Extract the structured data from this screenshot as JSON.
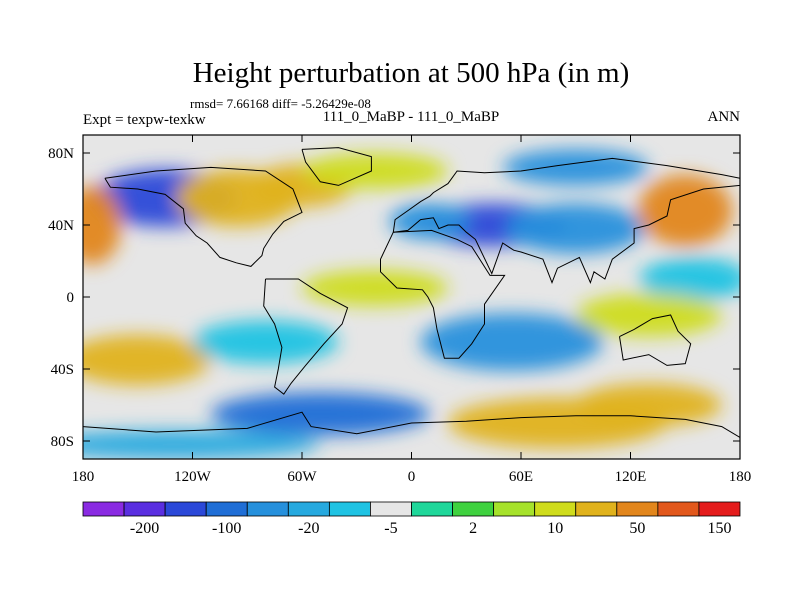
{
  "chart_data": {
    "type": "heatmap",
    "title": "Height perturbation at 500 hPa (in m)",
    "stats_text": "rmsd= 7.66168 diff= -5.26429e-08",
    "subtitle_left": "Expt = texpw-texkw",
    "subtitle_center": "111_0_MaBP - 111_0_MaBP",
    "subtitle_right": "ANN",
    "xlim": [
      -180,
      180
    ],
    "ylim": [
      -90,
      90
    ],
    "x_ticks": [
      {
        "value": -180,
        "label": "180"
      },
      {
        "value": -120,
        "label": "120W"
      },
      {
        "value": -60,
        "label": "60W"
      },
      {
        "value": 0,
        "label": "0"
      },
      {
        "value": 60,
        "label": "60E"
      },
      {
        "value": 120,
        "label": "120E"
      },
      {
        "value": 180,
        "label": "180"
      }
    ],
    "y_ticks": [
      {
        "value": 80,
        "label": "80N"
      },
      {
        "value": 40,
        "label": "40N"
      },
      {
        "value": 0,
        "label": "0"
      },
      {
        "value": -40,
        "label": "40S"
      },
      {
        "value": -80,
        "label": "80S"
      }
    ],
    "colorbar": {
      "colors": [
        "#8a2be2",
        "#5a2ee0",
        "#2b48d8",
        "#1f6ed6",
        "#2690dc",
        "#26a9df",
        "#1fc3e3",
        "#e6e6e6",
        "#1fd79a",
        "#3fd13f",
        "#a6e22b",
        "#cfdc1c",
        "#e0b21c",
        "#e2861c",
        "#e2581c",
        "#e41c1c"
      ],
      "labels": [
        "-200",
        "-100",
        "-20",
        "-5",
        "2",
        "10",
        "50",
        "150"
      ]
    },
    "fields": [
      {
        "lon": -135,
        "lat": 55,
        "value": -120
      },
      {
        "lon": -175,
        "lat": 40,
        "value": 60
      },
      {
        "lon": -95,
        "lat": 55,
        "value": 25
      },
      {
        "lon": -60,
        "lat": 62,
        "value": 45
      },
      {
        "lon": -20,
        "lat": 70,
        "value": 10
      },
      {
        "lon": 45,
        "lat": 40,
        "value": -120
      },
      {
        "lon": 10,
        "lat": 42,
        "value": -30
      },
      {
        "lon": 90,
        "lat": 38,
        "value": -25
      },
      {
        "lon": 90,
        "lat": 72,
        "value": -25
      },
      {
        "lon": 150,
        "lat": 48,
        "value": 70
      },
      {
        "lon": 155,
        "lat": 10,
        "value": -10
      },
      {
        "lon": -20,
        "lat": 5,
        "value": 12
      },
      {
        "lon": 130,
        "lat": -10,
        "value": 15
      },
      {
        "lon": 55,
        "lat": -25,
        "value": -50
      },
      {
        "lon": -150,
        "lat": -35,
        "value": 45
      },
      {
        "lon": -80,
        "lat": -25,
        "value": -10
      },
      {
        "lon": -50,
        "lat": -65,
        "value": -90
      },
      {
        "lon": 80,
        "lat": -70,
        "value": 40
      },
      {
        "lon": 130,
        "lat": -60,
        "value": 25
      },
      {
        "lon": -130,
        "lat": -82,
        "value": -20
      }
    ]
  }
}
